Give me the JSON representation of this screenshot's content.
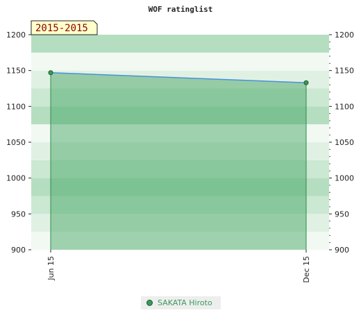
{
  "chart_data": {
    "type": "area",
    "title": "WOF ratinglist",
    "range_label": "2015-2015",
    "x": [
      "Jun 15",
      "Dec 15"
    ],
    "ylim": [
      900,
      1200
    ],
    "y_ticks": [
      900,
      950,
      1000,
      1050,
      1100,
      1150,
      1200
    ],
    "series": [
      {
        "name": "SAKATA Hiroto",
        "values": [
          1147,
          1133
        ]
      }
    ],
    "legend_placement": "bottom",
    "colors": {
      "fill": "#3aa05a",
      "line": "#4a90d9",
      "marker": "#3a9a5a"
    }
  }
}
